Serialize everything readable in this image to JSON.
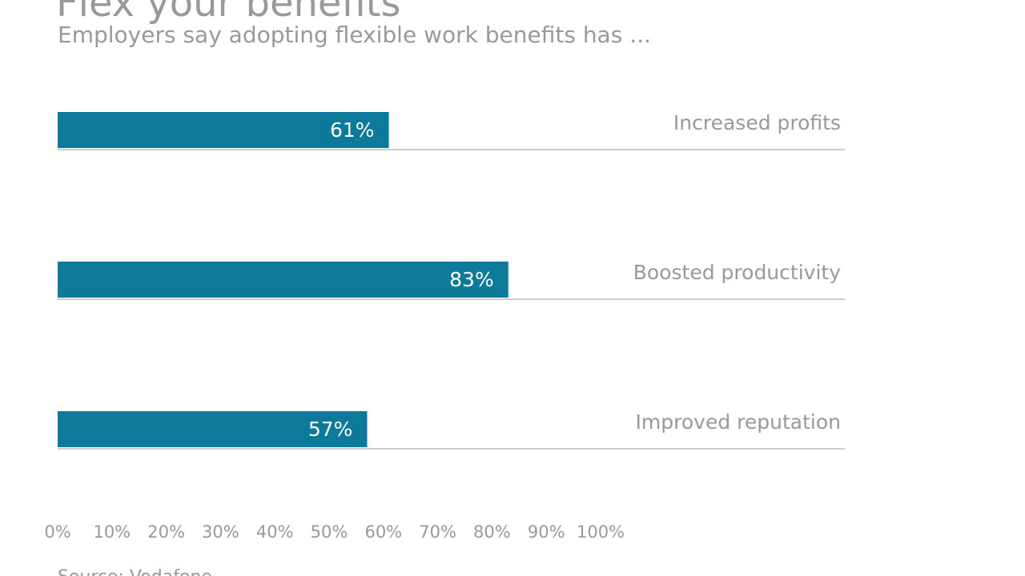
{
  "chart_data": {
    "type": "bar",
    "orientation": "horizontal",
    "title": "Flex your benefits",
    "subtitle": "Employers say adopting flexible work benefits has ...",
    "categories": [
      "Increased profits",
      "Boosted productivity",
      "Improved reputation"
    ],
    "values": [
      61,
      83,
      57
    ],
    "value_labels": [
      "61%",
      "83%",
      "57%"
    ],
    "color": "#0e7a9a",
    "xlim": [
      0,
      100
    ],
    "xticks": [
      {
        "value": 0,
        "label": "0%"
      },
      {
        "value": 10,
        "label": "10%"
      },
      {
        "value": 20,
        "label": "20%"
      },
      {
        "value": 30,
        "label": "30%"
      },
      {
        "value": 40,
        "label": "40%"
      },
      {
        "value": 50,
        "label": "50%"
      },
      {
        "value": 60,
        "label": "60%"
      },
      {
        "value": 70,
        "label": "70%"
      },
      {
        "value": 80,
        "label": "80%"
      },
      {
        "value": 90,
        "label": "90%"
      },
      {
        "value": 100,
        "label": "100%"
      }
    ],
    "source": "Source: Vodafone"
  }
}
